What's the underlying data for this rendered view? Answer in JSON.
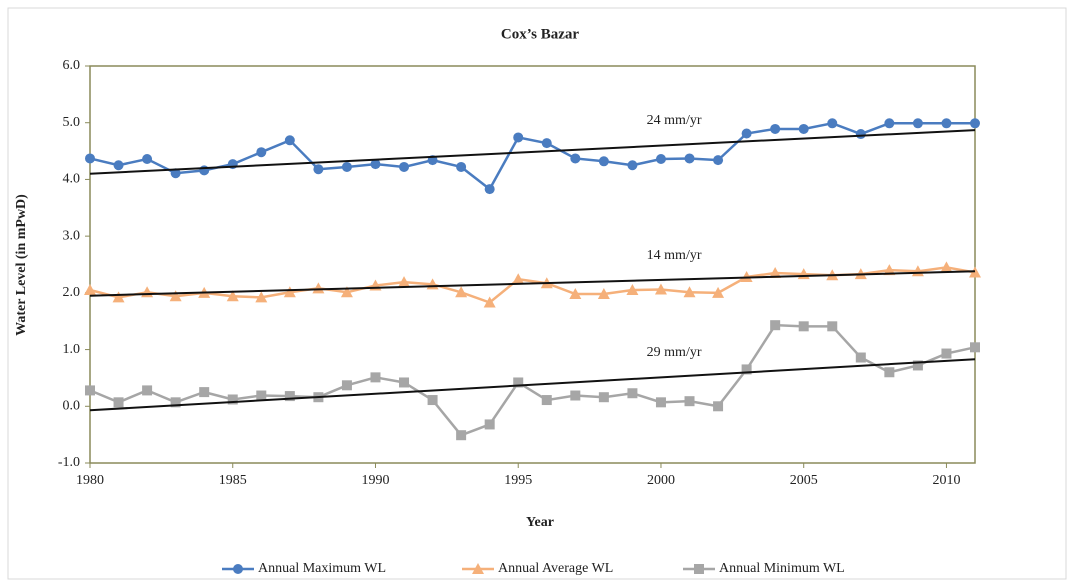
{
  "chart_data": {
    "type": "line",
    "title": "Cox’s Bazar",
    "x_label": "Year",
    "y_label": "Water Level (in mPwD)",
    "x": [
      1980,
      1981,
      1982,
      1983,
      1984,
      1985,
      1986,
      1987,
      1988,
      1989,
      1990,
      1991,
      1992,
      1993,
      1994,
      1995,
      1996,
      1997,
      1998,
      1999,
      2000,
      2001,
      2002,
      2003,
      2004,
      2005,
      2006,
      2007,
      2008,
      2009,
      2010,
      2011
    ],
    "xlim": [
      1980,
      2011
    ],
    "xticks": [
      1980,
      1985,
      1990,
      1995,
      2000,
      2005,
      2010
    ],
    "ylim": [
      -1,
      6
    ],
    "yticks": [
      {
        "value": -1,
        "label": "-1.0"
      },
      {
        "value": 0,
        "label": "0.0"
      },
      {
        "value": 1,
        "label": "1.0"
      },
      {
        "value": 2,
        "label": "2.0"
      },
      {
        "value": 3,
        "label": "3.0"
      },
      {
        "value": 4,
        "label": "4.0"
      },
      {
        "value": 5,
        "label": "5.0"
      },
      {
        "value": 6,
        "label": "6.0"
      }
    ],
    "series": [
      {
        "name": "Annual Maximum WL",
        "color": "#4a7cc0",
        "marker": "circle",
        "values": [
          4.37,
          4.25,
          4.36,
          4.11,
          4.16,
          4.27,
          4.48,
          4.69,
          4.18,
          4.22,
          4.27,
          4.22,
          4.34,
          4.22,
          3.83,
          4.74,
          4.64,
          4.37,
          4.32,
          4.25,
          4.36,
          4.37,
          4.34,
          4.81,
          4.89,
          4.89,
          4.99,
          4.8,
          4.99,
          4.99,
          4.99,
          4.99
        ]
      },
      {
        "name": "Annual Average WL",
        "color": "#f5b07a",
        "marker": "triangle",
        "values": [
          2.05,
          1.92,
          2.01,
          1.94,
          2.0,
          1.94,
          1.92,
          2.01,
          2.08,
          2.01,
          2.13,
          2.19,
          2.15,
          2.01,
          1.83,
          2.24,
          2.17,
          1.98,
          1.98,
          2.05,
          2.06,
          2.01,
          2.0,
          2.28,
          2.35,
          2.33,
          2.31,
          2.33,
          2.4,
          2.38,
          2.45,
          2.36
        ]
      },
      {
        "name": "Annual Minimum WL",
        "color": "#a6a6a6",
        "marker": "square",
        "values": [
          0.28,
          0.07,
          0.28,
          0.07,
          0.25,
          0.12,
          0.19,
          0.18,
          0.16,
          0.37,
          0.51,
          0.42,
          0.11,
          -0.51,
          -0.32,
          0.42,
          0.11,
          0.19,
          0.16,
          0.23,
          0.07,
          0.09,
          0.0,
          0.65,
          1.43,
          1.41,
          1.41,
          0.86,
          0.6,
          0.72,
          0.93,
          1.04
        ]
      }
    ],
    "trendlines": [
      {
        "label": "24 mm/yr",
        "start": 4.1,
        "end": 4.87
      },
      {
        "label": "14 mm/yr",
        "start": 1.95,
        "end": 2.38
      },
      {
        "label": "29 mm/yr",
        "start": -0.07,
        "end": 0.83
      }
    ],
    "legend": "bottom"
  }
}
